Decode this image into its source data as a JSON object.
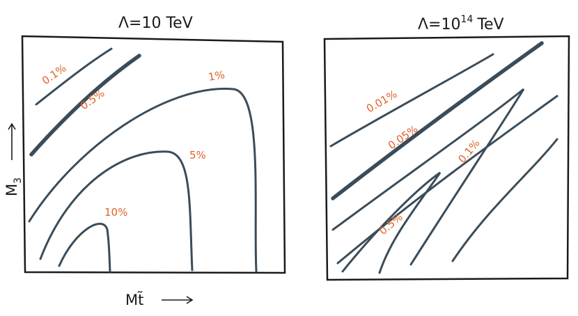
{
  "panels": [
    {
      "title": {
        "text": "Λ=10 TeV"
      },
      "contour_labels": [
        "0.1%",
        "0.5%",
        "1%",
        "5%",
        "10%"
      ]
    },
    {
      "title": {
        "text": "Λ=10",
        "exponent": "14",
        "unit": "TeV"
      },
      "contour_labels": [
        "0.01%",
        "0.05%",
        "0.1%",
        "0.5%"
      ]
    }
  ],
  "y_label": {
    "symbol": "M",
    "subscript": "3"
  },
  "x_label": "Mt̃"
}
